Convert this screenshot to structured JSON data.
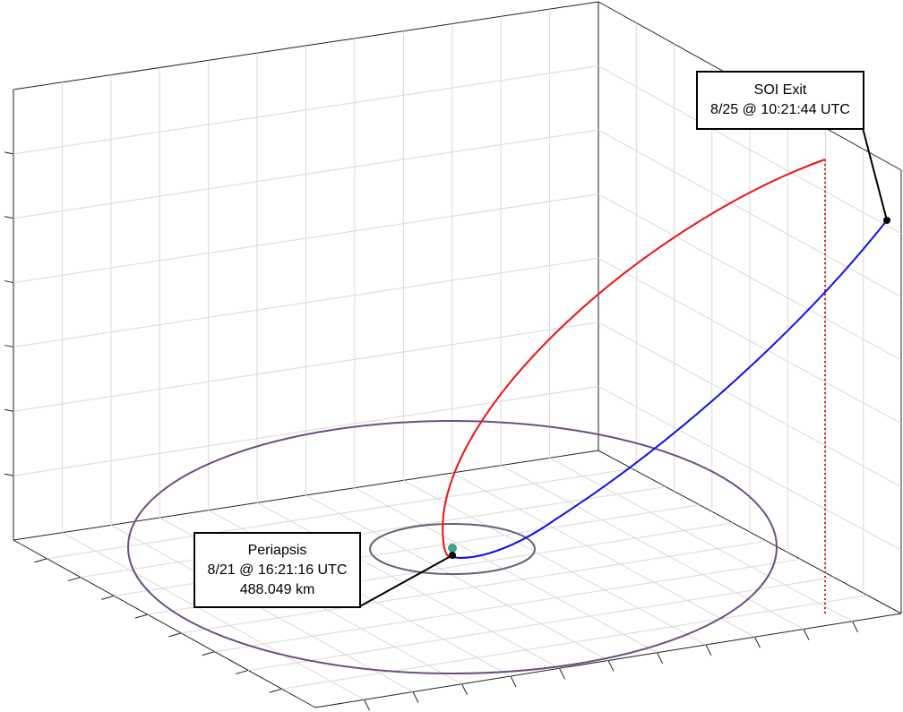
{
  "annotations": {
    "periapsis": {
      "title": "Periapsis",
      "time": "8/21 @ 16:21:16 UTC",
      "altitude": "488.049 km"
    },
    "soi_exit": {
      "title": "SOI Exit",
      "time": "8/25 @ 10:21:44 UTC"
    }
  },
  "colors": {
    "incoming_arc": "#ee1111",
    "outgoing_arc": "#1111ee",
    "projection_line": "#dd2222",
    "outer_orbit": "#6b4f80",
    "inner_orbit": "#5f6475",
    "body_marker": "#3aa58a",
    "grid": "#d9d9d9",
    "axes": "#222222"
  }
}
